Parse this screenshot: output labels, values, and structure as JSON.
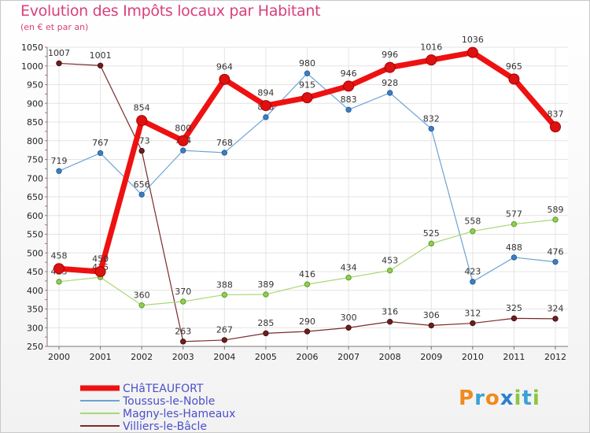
{
  "header": {
    "title": "Evolution des Impôts locaux par Habitant",
    "subtitle": "(en € et par an)"
  },
  "logo": {
    "text": "Proxiti"
  },
  "colors": {
    "chateaufort": "#ee1111",
    "toussus": "#6da3d4",
    "magny": "#a8d878",
    "villiers": "#7a2a2a",
    "grid": "#e4e4e4",
    "axis": "#777777"
  },
  "chart_data": {
    "type": "line",
    "title": "Evolution des Impôts locaux par Habitant",
    "subtitle": "(en € et par an)",
    "xlabel": "",
    "ylabel": "",
    "ylim": [
      250,
      1050
    ],
    "yticks": [
      250,
      300,
      350,
      400,
      450,
      500,
      550,
      600,
      650,
      700,
      750,
      800,
      850,
      900,
      950,
      1000,
      1050
    ],
    "x": [
      "2000",
      "2001",
      "2002",
      "2003",
      "2004",
      "2005",
      "2006",
      "2007",
      "2008",
      "2009",
      "2010",
      "2011",
      "2012"
    ],
    "legend_position": "bottom-left",
    "grid": true,
    "series": [
      {
        "name": "CHâTEAUFORT",
        "key": "chateaufort",
        "values": [
          458,
          450,
          854,
          800,
          964,
          894,
          915,
          946,
          996,
          1016,
          1036,
          965,
          837
        ]
      },
      {
        "name": "Toussus-le-Noble",
        "key": "toussus",
        "values": [
          719,
          767,
          656,
          774,
          768,
          863,
          980,
          883,
          928,
          832,
          423,
          488,
          476
        ]
      },
      {
        "name": "Magny-les-Hameaux",
        "key": "magny",
        "values": [
          423,
          435,
          360,
          370,
          388,
          389,
          416,
          434,
          453,
          525,
          558,
          577,
          589
        ]
      },
      {
        "name": "Villiers-le-Bâcle",
        "key": "villiers",
        "values": [
          1007,
          1001,
          773,
          263,
          267,
          285,
          290,
          300,
          316,
          306,
          312,
          325,
          324
        ]
      }
    ]
  }
}
